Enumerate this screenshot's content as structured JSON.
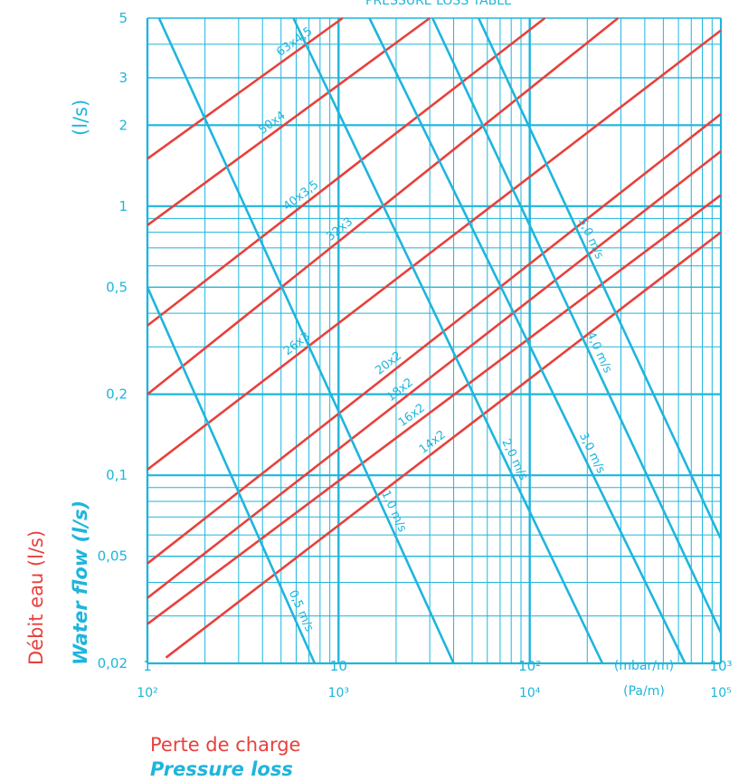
{
  "colors": {
    "blue": "#1fb5dc",
    "red": "#e8403c",
    "background": "#ffffff"
  },
  "chart_data": {
    "type": "line",
    "title": "PRESSURE LOSS TABLE",
    "scale": "log-log",
    "grid": true,
    "xlabel": {
      "fr": "Perte de charge",
      "en": "Pressure loss"
    },
    "ylabel": {
      "fr": "Débit eau (l/s)",
      "en": "Water flow (l/s)",
      "unit_top": "(l/s)"
    },
    "xlim": [
      1,
      1000
    ],
    "ylim": [
      0.02,
      5
    ],
    "x_units": {
      "primary": "(mbar/m)",
      "secondary": "(Pa/m)"
    },
    "x_ticks": [
      {
        "value": 1,
        "label": "1",
        "sub": "10²"
      },
      {
        "value": 10,
        "label": "10",
        "sub": "10³"
      },
      {
        "value": 100,
        "label": "10²",
        "sub": "10⁴"
      },
      {
        "value": 1000,
        "label": "10³",
        "sub": "10⁵"
      }
    ],
    "y_ticks": [
      {
        "value": 5,
        "label": "5"
      },
      {
        "value": 3,
        "label": "3"
      },
      {
        "value": 2,
        "label": "2"
      },
      {
        "value": 1,
        "label": "1"
      },
      {
        "value": 0.5,
        "label": "0,5"
      },
      {
        "value": 0.2,
        "label": "0,2"
      },
      {
        "value": 0.1,
        "label": "0,1"
      },
      {
        "value": 0.05,
        "label": "0,05"
      },
      {
        "value": 0.02,
        "label": "0,02"
      }
    ],
    "pipe_series": [
      {
        "name": "63x4,5",
        "points": [
          [
            1,
            1.5
          ],
          [
            10.5,
            5
          ]
        ]
      },
      {
        "name": "50x4",
        "points": [
          [
            1,
            0.85
          ],
          [
            30,
            5
          ]
        ]
      },
      {
        "name": "40x3,5",
        "points": [
          [
            1,
            0.36
          ],
          [
            120,
            5
          ]
        ]
      },
      {
        "name": "32x3",
        "points": [
          [
            1,
            0.2
          ],
          [
            290,
            5
          ]
        ]
      },
      {
        "name": "26x3",
        "points": [
          [
            1,
            0.105
          ],
          [
            1000,
            4.5
          ]
        ]
      },
      {
        "name": "20x2",
        "points": [
          [
            1,
            0.047
          ],
          [
            1000,
            2.2
          ]
        ]
      },
      {
        "name": "18x2",
        "points": [
          [
            1,
            0.035
          ],
          [
            1000,
            1.6
          ]
        ]
      },
      {
        "name": "16x2",
        "points": [
          [
            1,
            0.028
          ],
          [
            1000,
            1.1
          ]
        ]
      },
      {
        "name": "14x2",
        "points": [
          [
            1.25,
            0.021
          ],
          [
            1000,
            0.8
          ]
        ]
      }
    ],
    "velocity_series": [
      {
        "name": "0,5 m/s",
        "points": [
          [
            1,
            0.5
          ],
          [
            7.5,
            0.02
          ]
        ]
      },
      {
        "name": "1,0 m/s",
        "points": [
          [
            1.15,
            5
          ],
          [
            40,
            0.02
          ]
        ]
      },
      {
        "name": "2,0 m/s",
        "points": [
          [
            5.8,
            5
          ],
          [
            240,
            0.02
          ]
        ]
      },
      {
        "name": "3,0 m/s",
        "points": [
          [
            14.5,
            5
          ],
          [
            650,
            0.02
          ]
        ]
      },
      {
        "name": "4,0 m/s",
        "points": [
          [
            31,
            5
          ],
          [
            1000,
            0.026
          ]
        ]
      },
      {
        "name": "5,0 m/s",
        "points": [
          [
            54,
            5
          ],
          [
            1000,
            0.058
          ]
        ]
      }
    ]
  }
}
